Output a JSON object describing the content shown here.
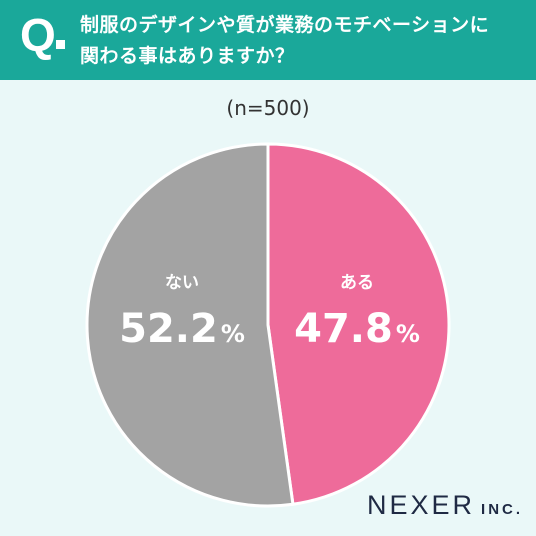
{
  "header": {
    "q_mark": "Q",
    "question_line1": "制服のデザインや質が業務のモチベーションに",
    "question_line2": "関わる事はありますか？",
    "band_color": "#1aa89a"
  },
  "sample": "(n=500)",
  "chart_data": {
    "type": "pie",
    "title": "",
    "unit": "%",
    "slices": [
      {
        "label": "ある",
        "value": 47.8,
        "value_text": "47.8",
        "color": "#ee6b9a"
      },
      {
        "label": "ない",
        "value": 52.2,
        "value_text": "52.2",
        "color": "#a3a3a3"
      }
    ]
  },
  "logo": {
    "main": "NEXER",
    "sub": "INC."
  }
}
